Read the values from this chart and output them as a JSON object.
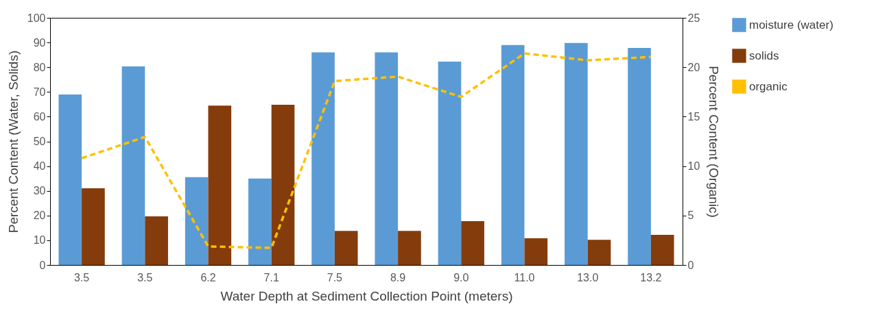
{
  "chart_data": {
    "type": "bar",
    "xlabel": "Water Depth at Sediment Collection Point (meters)",
    "ylabel": "Percent Content (Water, Solids)",
    "y2label": "Percent Content (Organic)",
    "categories": [
      "3.5",
      "3.5",
      "6.2",
      "7.1",
      "7.5",
      "8.9",
      "9.0",
      "11.0",
      "13.0",
      "13.2"
    ],
    "series": [
      {
        "name": "moisture (water)",
        "color": "#5b9bd5",
        "values": [
          69,
          80.3,
          35.5,
          35,
          86,
          86,
          82.3,
          89,
          89.8,
          87.8
        ]
      },
      {
        "name": "solids",
        "color": "#843c0c",
        "values": [
          31,
          19.7,
          64.5,
          64.8,
          13.8,
          13.8,
          17.7,
          10.8,
          10.2,
          12.2
        ]
      },
      {
        "name": "organic",
        "type": "line",
        "axis": "y2",
        "line_style": "dashed",
        "marker": "none",
        "color": "#ffc000",
        "values": [
          10.8,
          12.95,
          1.87,
          1.73,
          18.6,
          19.05,
          17,
          21.4,
          20.7,
          21.05
        ]
      }
    ],
    "ylim": [
      0,
      100
    ],
    "yticks": [
      0,
      10,
      20,
      30,
      40,
      50,
      60,
      70,
      80,
      90,
      100
    ],
    "y2lim": [
      0,
      25
    ],
    "y2ticks": [
      0,
      5,
      10,
      15,
      20,
      25
    ],
    "grid": false,
    "legend": "right"
  }
}
